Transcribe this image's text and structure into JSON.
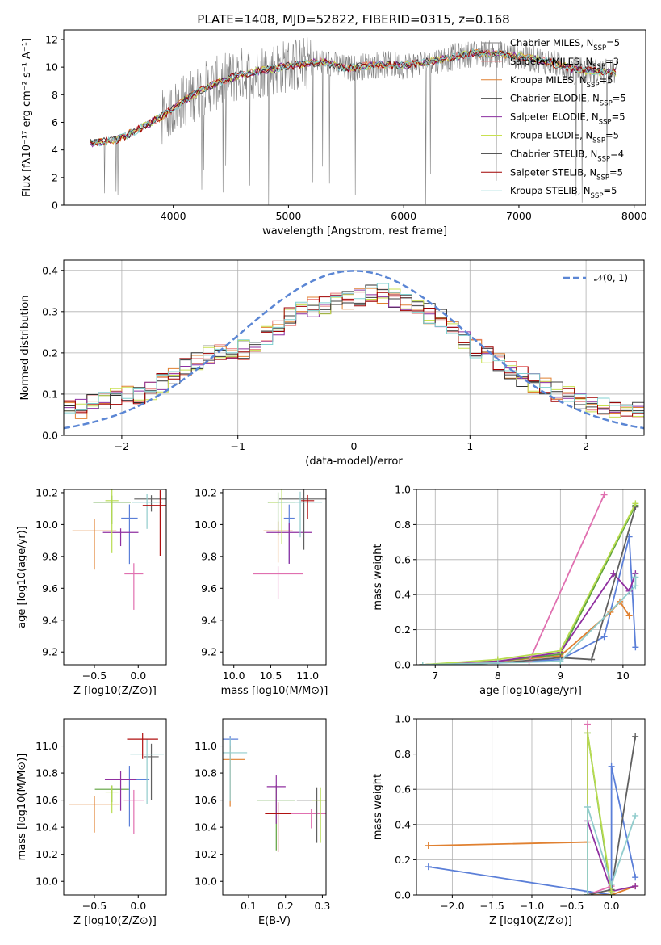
{
  "title": "PLATE=1408, MJD=52822, FIBERID=0315, z=0.168",
  "colors": {
    "series": [
      "#808080",
      "#e77c7c",
      "#e08030",
      "#303030",
      "#8c2fa0",
      "#c8e050",
      "#404040",
      "#a00000",
      "#80d0d0"
    ],
    "subseries": [
      "#5b7fd8",
      "#e08030",
      "#5ca03c",
      "#9030a0",
      "#e070b0",
      "#606060",
      "#b8dc50",
      "#90cccc",
      "#b01010"
    ],
    "gaussian": "#5b86d4"
  },
  "chart_data": [
    {
      "type": "line",
      "title": "PLATE=1408, MJD=52822, FIBERID=0315, z=0.168",
      "xlabel": "wavelength [Angstrom, rest frame]",
      "ylabel": "Flux [fλ10⁻¹⁷ erg cm⁻² s⁻¹ A⁻¹]",
      "xlim": [
        3050,
        8100
      ],
      "ylim": [
        0,
        12.7
      ],
      "xticks": [
        4000,
        5000,
        6000,
        7000,
        8000
      ],
      "yticks": [
        0,
        2,
        4,
        6,
        8,
        10,
        12
      ],
      "legend": "top-right",
      "legend_entries": [
        "Chabrier MILES, N_SSP=5",
        "Salpeter MILES, N_SSP=3",
        "Kroupa MILES, N_SSP=5",
        "Chabrier ELODIE, N_SSP=5",
        "Salpeter ELODIE, N_SSP=5",
        "Kroupa ELODIE, N_SSP=5",
        "Chabrier STELIB, N_SSP=4",
        "Salpeter STELIB, N_SSP=5",
        "Kroupa STELIB, N_SSP=5"
      ],
      "continuum_knots": {
        "x": [
          3280,
          3500,
          3700,
          3900,
          4100,
          4300,
          4600,
          5000,
          5300,
          5500,
          5800,
          6000,
          6300,
          6600,
          6900,
          7200,
          7500,
          7800
        ],
        "y": [
          4.5,
          4.7,
          5.5,
          6.4,
          7.6,
          8.6,
          9.5,
          10.1,
          10.4,
          9.9,
          10.2,
          10.1,
          10.5,
          11.0,
          10.9,
          10.5,
          9.8,
          9.6
        ]
      }
    },
    {
      "type": "step",
      "xlabel": "(data-model)/error",
      "ylabel": "Normed distribution",
      "xlim": [
        -2.5,
        2.5
      ],
      "ylim": [
        0,
        0.425
      ],
      "xticks": [
        -2,
        -1,
        0,
        1,
        2
      ],
      "yticks": [
        0.0,
        0.1,
        0.2,
        0.3,
        0.4
      ],
      "grid": true,
      "legend": "top-right",
      "legend_entries": [
        "𝒩(0, 1)"
      ],
      "base_distribution": {
        "x": [
          -2.4,
          -2.2,
          -2.0,
          -1.8,
          -1.6,
          -1.4,
          -1.2,
          -1.0,
          -0.8,
          -0.6,
          -0.4,
          -0.2,
          0.0,
          0.2,
          0.4,
          0.6,
          0.8,
          1.0,
          1.2,
          1.4,
          1.6,
          1.8,
          2.0,
          2.2,
          2.4
        ],
        "y": [
          0.06,
          0.08,
          0.1,
          0.1,
          0.14,
          0.17,
          0.2,
          0.2,
          0.23,
          0.28,
          0.31,
          0.32,
          0.33,
          0.35,
          0.33,
          0.3,
          0.28,
          0.22,
          0.19,
          0.15,
          0.12,
          0.1,
          0.08,
          0.07,
          0.06
        ]
      }
    },
    {
      "type": "scatter",
      "xlabel": "Z [log10(Z/Z⊙)]",
      "ylabel": "age  [log10(age/yr)]",
      "xlim": [
        -0.85,
        0.32
      ],
      "ylim": [
        9.12,
        10.22
      ],
      "xticks": [
        -0.5,
        0.0
      ],
      "yticks": [
        9.2,
        9.4,
        9.6,
        9.8,
        10.0,
        10.2
      ],
      "points": [
        {
          "x": -0.1,
          "y": 10.04
        },
        {
          "x": -0.5,
          "y": 9.96
        },
        {
          "x": -0.3,
          "y": 10.14
        },
        {
          "x": -0.2,
          "y": 9.95
        },
        {
          "x": -0.05,
          "y": 9.69
        },
        {
          "x": 0.15,
          "y": 10.16
        },
        {
          "x": -0.3,
          "y": 10.15
        },
        {
          "x": 0.1,
          "y": 10.14
        },
        {
          "x": 0.25,
          "y": 10.12
        }
      ]
    },
    {
      "type": "scatter",
      "xlabel": "mass [log10(M/M⊙)]",
      "ylabel": "",
      "xlim": [
        9.85,
        11.25
      ],
      "ylim": [
        9.12,
        10.22
      ],
      "xticks": [
        10.0,
        10.5,
        11.0
      ],
      "yticks": [
        9.2,
        9.4,
        9.6,
        9.8,
        10.0,
        10.2
      ],
      "points": [
        {
          "x": 10.75,
          "y": 10.04
        },
        {
          "x": 10.6,
          "y": 9.96
        },
        {
          "x": 10.6,
          "y": 10.14
        },
        {
          "x": 10.75,
          "y": 9.95
        },
        {
          "x": 10.6,
          "y": 9.69
        },
        {
          "x": 10.95,
          "y": 10.16
        },
        {
          "x": 10.65,
          "y": 10.14
        },
        {
          "x": 10.9,
          "y": 10.14
        },
        {
          "x": 11.0,
          "y": 10.15
        }
      ]
    },
    {
      "type": "line",
      "xlabel": "age  [log10(age/yr)]",
      "ylabel": "mass weight",
      "xlim": [
        6.7,
        10.35
      ],
      "ylim": [
        0,
        1.0
      ],
      "xticks": [
        7,
        8,
        9,
        10
      ],
      "yticks": [
        0.0,
        0.2,
        0.4,
        0.6,
        0.8,
        1.0
      ],
      "grid": true,
      "series": [
        {
          "x": [
            6.8,
            8.0,
            9.0,
            9.7,
            10.1,
            10.2
          ],
          "y": [
            0.0,
            0.01,
            0.03,
            0.16,
            0.73,
            0.1
          ]
        },
        {
          "x": [
            6.8,
            8.0,
            9.0,
            9.8,
            9.95,
            10.1
          ],
          "y": [
            0.0,
            0.02,
            0.05,
            0.3,
            0.36,
            0.28
          ]
        },
        {
          "x": [
            6.8,
            8.0,
            9.0,
            10.2
          ],
          "y": [
            0.0,
            0.02,
            0.06,
            0.91
          ]
        },
        {
          "x": [
            6.8,
            8.0,
            9.0,
            9.85,
            10.1,
            10.2
          ],
          "y": [
            0.0,
            0.02,
            0.07,
            0.52,
            0.42,
            0.52
          ]
        },
        {
          "x": [
            6.8,
            8.5,
            9.7
          ],
          "y": [
            0.0,
            0.02,
            0.97
          ]
        },
        {
          "x": [
            6.8,
            8.0,
            9.0,
            9.5,
            10.2
          ],
          "y": [
            0.0,
            0.01,
            0.04,
            0.03,
            0.9
          ]
        },
        {
          "x": [
            6.8,
            8.0,
            9.0,
            10.2
          ],
          "y": [
            0.0,
            0.03,
            0.08,
            0.92
          ]
        },
        {
          "x": [
            6.8,
            8.0,
            9.0,
            10.2,
            10.2
          ],
          "y": [
            0.0,
            0.01,
            0.02,
            0.45,
            0.5
          ]
        }
      ]
    },
    {
      "type": "scatter",
      "xlabel": "Z [log10(Z/Z⊙)]",
      "ylabel": "mass [log10(M/M⊙)]",
      "xlim": [
        -0.85,
        0.32
      ],
      "ylim": [
        9.9,
        11.2
      ],
      "xticks": [
        -0.5,
        0.0
      ],
      "yticks": [
        10.0,
        10.2,
        10.4,
        10.6,
        10.8,
        11.0
      ],
      "points": [
        {
          "x": -0.1,
          "y": 10.75
        },
        {
          "x": -0.5,
          "y": 10.57
        },
        {
          "x": -0.3,
          "y": 10.68
        },
        {
          "x": -0.2,
          "y": 10.75
        },
        {
          "x": -0.05,
          "y": 10.6
        },
        {
          "x": 0.15,
          "y": 10.92
        },
        {
          "x": -0.3,
          "y": 10.66
        },
        {
          "x": 0.1,
          "y": 10.94
        },
        {
          "x": 0.05,
          "y": 11.05
        }
      ]
    },
    {
      "type": "scatter",
      "xlabel": "E(B-V)",
      "ylabel": "",
      "xlim": [
        0.03,
        0.31
      ],
      "ylim": [
        9.9,
        11.2
      ],
      "xticks": [
        0.1,
        0.2,
        0.3
      ],
      "yticks": [
        10.0,
        10.2,
        10.4,
        10.6,
        10.8,
        11.0
      ],
      "points": [
        {
          "x": 0.05,
          "y": 11.05
        },
        {
          "x": 0.05,
          "y": 10.9
        },
        {
          "x": 0.175,
          "y": 10.6
        },
        {
          "x": 0.175,
          "y": 10.7
        },
        {
          "x": 0.27,
          "y": 10.5
        },
        {
          "x": 0.285,
          "y": 10.6
        },
        {
          "x": 0.295,
          "y": 10.6
        },
        {
          "x": 0.05,
          "y": 10.95
        },
        {
          "x": 0.18,
          "y": 10.5
        }
      ]
    },
    {
      "type": "line",
      "xlabel": "Z [log10(Z/Z⊙)]",
      "ylabel": "mass weight",
      "xlim": [
        -2.45,
        0.42
      ],
      "ylim": [
        0,
        1.0
      ],
      "xticks": [
        -2.0,
        -1.5,
        -1.0,
        -0.5,
        0.0
      ],
      "yticks": [
        0.0,
        0.2,
        0.4,
        0.6,
        0.8,
        1.0
      ],
      "grid": true,
      "series": [
        {
          "x": [
            -2.3,
            -0.3,
            0.0,
            0.0,
            0.3
          ],
          "y": [
            0.16,
            0.02,
            0.0,
            0.73,
            0.1
          ]
        },
        {
          "x": [
            -2.3,
            -0.3,
            -0.3,
            0.0,
            0.3
          ],
          "y": [
            0.28,
            0.3,
            0.0,
            0.0,
            0.05
          ]
        },
        {
          "x": [
            -0.3,
            -0.3,
            0.0
          ],
          "y": [
            0.0,
            0.92,
            0.0
          ]
        },
        {
          "x": [
            -0.3,
            -0.3,
            0.0,
            0.3
          ],
          "y": [
            0.0,
            0.42,
            0.02,
            0.05
          ]
        },
        {
          "x": [
            -0.3,
            -0.3,
            0.0
          ],
          "y": [
            0.97,
            0.0,
            0.05
          ]
        },
        {
          "x": [
            -0.3,
            0.0,
            0.3
          ],
          "y": [
            0.0,
            0.03,
            0.9
          ]
        },
        {
          "x": [
            -0.3,
            -0.3,
            0.0
          ],
          "y": [
            0.0,
            0.92,
            0.02
          ]
        },
        {
          "x": [
            -0.3,
            -0.3,
            0.0,
            0.3
          ],
          "y": [
            0.0,
            0.5,
            0.06,
            0.45
          ]
        }
      ]
    }
  ]
}
